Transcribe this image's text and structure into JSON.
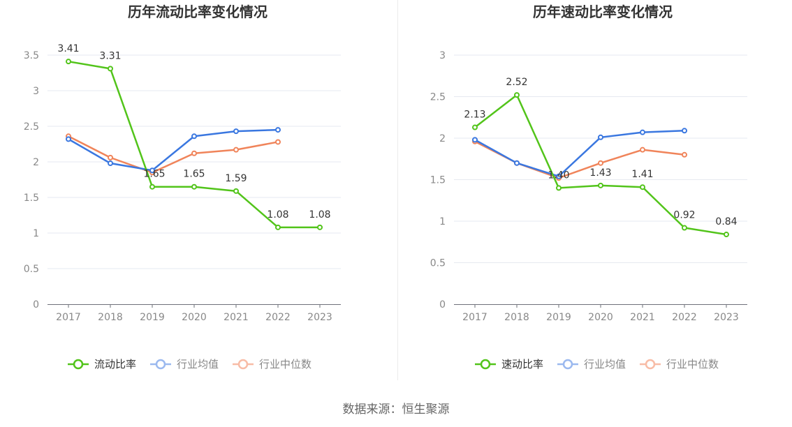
{
  "chart_data": [
    {
      "type": "line",
      "title": "历年流动比率变化情况",
      "categories": [
        "2017",
        "2018",
        "2019",
        "2020",
        "2021",
        "2022",
        "2023"
      ],
      "ylim": [
        0,
        3.5
      ],
      "yticks": [
        "0",
        "0.5",
        "1",
        "1.5",
        "2",
        "2.5",
        "3",
        "3.5"
      ],
      "series": [
        {
          "name": "流动比率",
          "color": "#52c41a",
          "values": [
            3.41,
            3.31,
            1.65,
            1.65,
            1.59,
            1.08,
            1.08
          ],
          "labels": [
            "3.41",
            "3.31",
            "1.65",
            "1.65",
            "1.59",
            "1.08",
            "1.08"
          ]
        },
        {
          "name": "行业均值",
          "color": "#3a77e0",
          "values": [
            2.32,
            1.98,
            1.88,
            2.36,
            2.43,
            2.45,
            null
          ]
        },
        {
          "name": "行业中位数",
          "color": "#f0845a",
          "values": [
            2.36,
            2.06,
            1.85,
            2.12,
            2.17,
            2.28,
            null
          ]
        }
      ],
      "legend": [
        "流动比率",
        "行业均值",
        "行业中位数"
      ],
      "grid": true
    },
    {
      "type": "line",
      "title": "历年速动比率变化情况",
      "categories": [
        "2017",
        "2018",
        "2019",
        "2020",
        "2021",
        "2022",
        "2023"
      ],
      "ylim": [
        0,
        3
      ],
      "yticks": [
        "0",
        "0.5",
        "1",
        "1.5",
        "2",
        "2.5",
        "3"
      ],
      "series": [
        {
          "name": "速动比率",
          "color": "#52c41a",
          "values": [
            2.13,
            2.52,
            1.4,
            1.43,
            1.41,
            0.92,
            0.84
          ],
          "labels": [
            "2.13",
            "2.52",
            "1.40",
            "1.43",
            "1.41",
            "0.92",
            "0.84"
          ]
        },
        {
          "name": "行业均值",
          "color": "#3a77e0",
          "values": [
            1.98,
            1.7,
            1.54,
            2.01,
            2.07,
            2.09,
            null
          ]
        },
        {
          "name": "行业中位数",
          "color": "#f0845a",
          "values": [
            1.96,
            1.7,
            1.52,
            1.7,
            1.86,
            1.8,
            null
          ]
        }
      ],
      "legend": [
        "速动比率",
        "行业均值",
        "行业中位数"
      ],
      "grid": true
    }
  ],
  "source": "数据来源：恒生聚源",
  "legend_inactive_colors": {
    "行业均值": "#9bb9ef",
    "行业中位数": "#f8bca6"
  }
}
